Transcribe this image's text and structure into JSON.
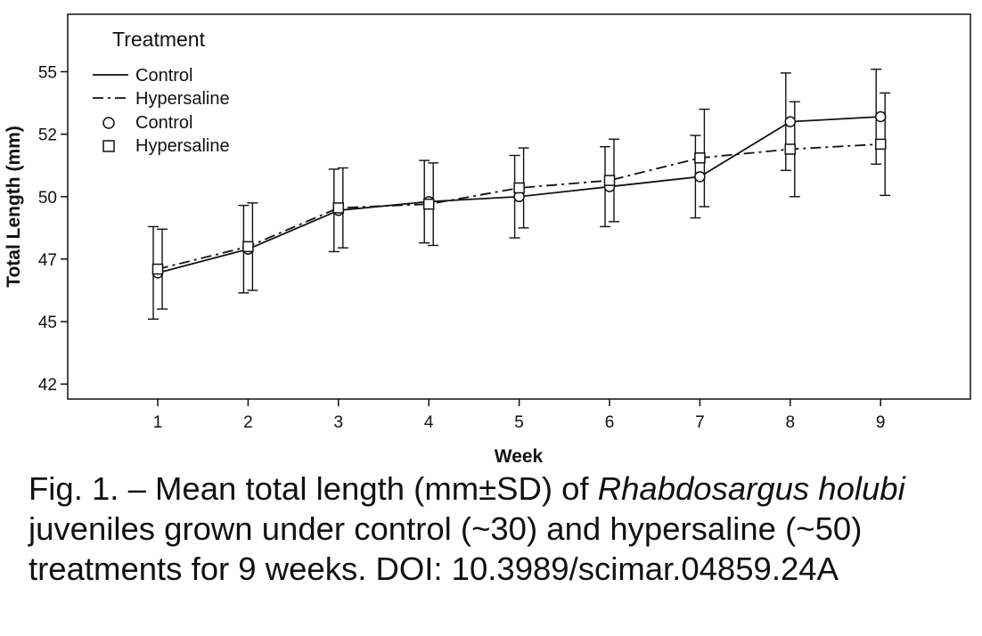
{
  "chart_data": {
    "type": "line",
    "xlabel": "Week",
    "ylabel": "Total Length (mm)",
    "x": [
      1,
      2,
      3,
      4,
      5,
      6,
      7,
      8,
      9
    ],
    "x_ticks": [
      "1",
      "2",
      "3",
      "4",
      "5",
      "6",
      "7",
      "8",
      "9"
    ],
    "y_ticks": [
      "42",
      "45",
      "47",
      "50",
      "52",
      "55"
    ],
    "y_tick_values": [
      42,
      44.5,
      47,
      49.5,
      52,
      54.5
    ],
    "ylim": [
      41.4,
      56.8
    ],
    "legend_title": "Treatment",
    "legend_position": "top-left",
    "legend": [
      {
        "label": "Control",
        "kind": "line",
        "dash": "solid"
      },
      {
        "label": "Hypersaline",
        "kind": "line",
        "dash": "dash-dot"
      },
      {
        "label": "Control",
        "kind": "marker",
        "marker": "circle"
      },
      {
        "label": "Hypersaline",
        "kind": "marker",
        "marker": "square"
      }
    ],
    "series": [
      {
        "name": "Control",
        "marker": "circle",
        "dash": "solid",
        "mean": [
          46.45,
          47.4,
          48.95,
          49.3,
          49.5,
          49.9,
          50.3,
          52.5,
          52.7
        ],
        "sd": [
          1.85,
          1.75,
          1.65,
          1.65,
          1.65,
          1.6,
          1.65,
          1.95,
          1.9
        ]
      },
      {
        "name": "Hypersaline",
        "marker": "square",
        "dash": "dash-dot",
        "mean": [
          46.6,
          47.5,
          49.05,
          49.2,
          49.85,
          50.15,
          51.05,
          51.4,
          51.6
        ],
        "sd": [
          1.6,
          1.75,
          1.6,
          1.65,
          1.6,
          1.65,
          1.95,
          1.9,
          2.05
        ]
      }
    ]
  },
  "caption": {
    "prefix": "Fig. 1. – Mean total length (mm±SD) of ",
    "species": "Rhabdosargus holubi",
    "suffix": " juveniles grown under control (~30) and hypersaline (~50) treatments for 9 weeks. DOI: 10.3989/scimar.04859.24A"
  }
}
